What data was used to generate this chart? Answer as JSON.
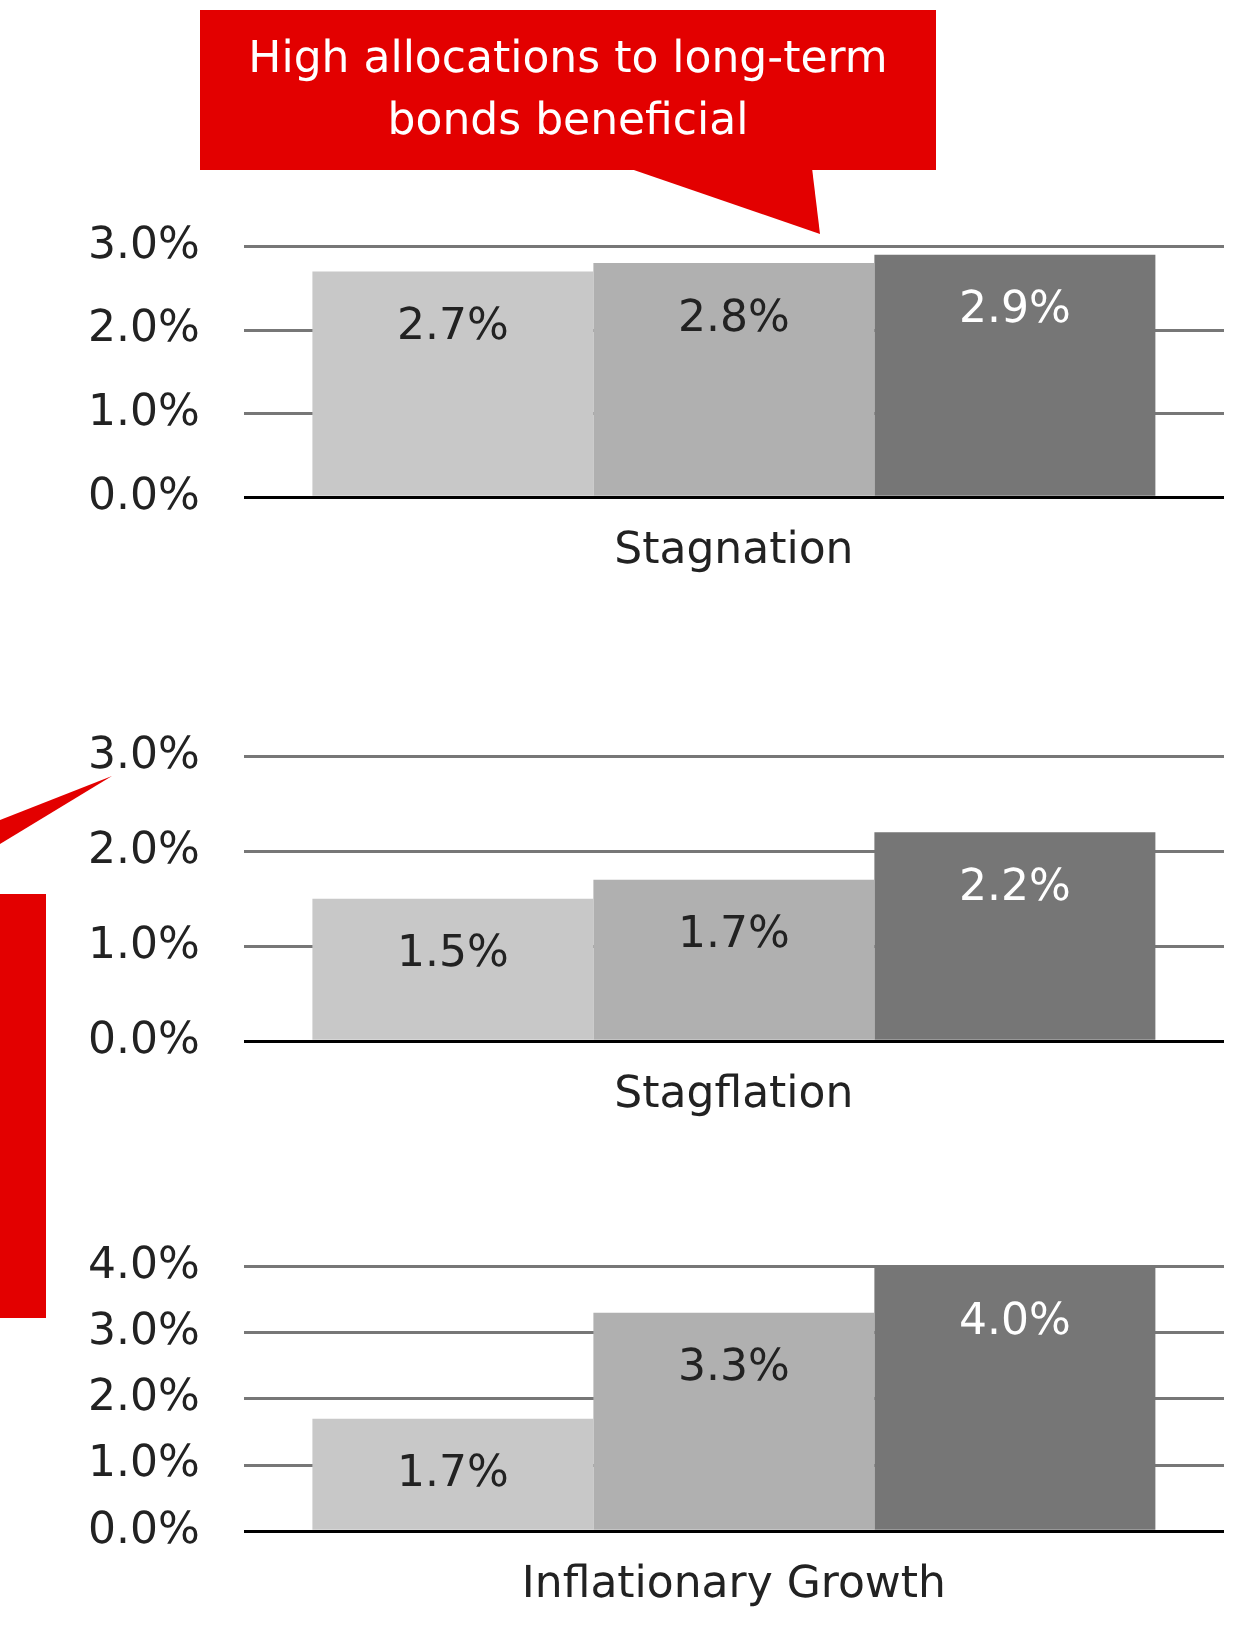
{
  "chart_data": [
    {
      "type": "bar",
      "categories": [
        "Stagnation"
      ],
      "ylim": [
        0,
        3
      ],
      "yticks": [
        {
          "value": 0,
          "label": "0.0%"
        },
        {
          "value": 1,
          "label": "1.0%"
        },
        {
          "value": 2,
          "label": "2.0%"
        },
        {
          "value": 3,
          "label": "3.0%"
        }
      ],
      "grid": "y",
      "legend": false,
      "series": [
        {
          "color": "#c8c8c8",
          "values": [
            2.7
          ],
          "value_labels": [
            "2.7%"
          ]
        },
        {
          "color": "#b0b0b0",
          "values": [
            2.8
          ],
          "value_labels": [
            "2.8%"
          ]
        },
        {
          "color": "#767676",
          "values": [
            2.9
          ],
          "value_labels": [
            "2.9%"
          ]
        }
      ],
      "annotations": [
        "High allocations to long-term bonds beneficial"
      ]
    },
    {
      "type": "bar",
      "categories": [
        "Stagflation"
      ],
      "ylim": [
        0,
        3
      ],
      "yticks": [
        {
          "value": 0,
          "label": "0.0%"
        },
        {
          "value": 1,
          "label": "1.0%"
        },
        {
          "value": 2,
          "label": "2.0%"
        },
        {
          "value": 3,
          "label": "3.0%"
        }
      ],
      "grid": "y",
      "legend": false,
      "series": [
        {
          "color": "#c8c8c8",
          "values": [
            1.5
          ],
          "value_labels": [
            "1.5%"
          ]
        },
        {
          "color": "#b0b0b0",
          "values": [
            1.7
          ],
          "value_labels": [
            "1.7%"
          ]
        },
        {
          "color": "#767676",
          "values": [
            2.2
          ],
          "value_labels": [
            "2.2%"
          ]
        }
      ]
    },
    {
      "type": "bar",
      "categories": [
        "Inflationary Growth"
      ],
      "ylim": [
        0,
        4
      ],
      "yticks": [
        {
          "value": 0,
          "label": "0.0%"
        },
        {
          "value": 1,
          "label": "1.0%"
        },
        {
          "value": 2,
          "label": "2.0%"
        },
        {
          "value": 3,
          "label": "3.0%"
        },
        {
          "value": 4,
          "label": "4.0%"
        }
      ],
      "grid": "y",
      "legend": false,
      "series": [
        {
          "color": "#c8c8c8",
          "values": [
            1.7
          ],
          "value_labels": [
            "1.7%"
          ]
        },
        {
          "color": "#b0b0b0",
          "values": [
            3.3
          ],
          "value_labels": [
            "3.3%"
          ]
        },
        {
          "color": "#767676",
          "values": [
            4.0
          ],
          "value_labels": [
            "4.0%"
          ]
        }
      ]
    }
  ]
}
